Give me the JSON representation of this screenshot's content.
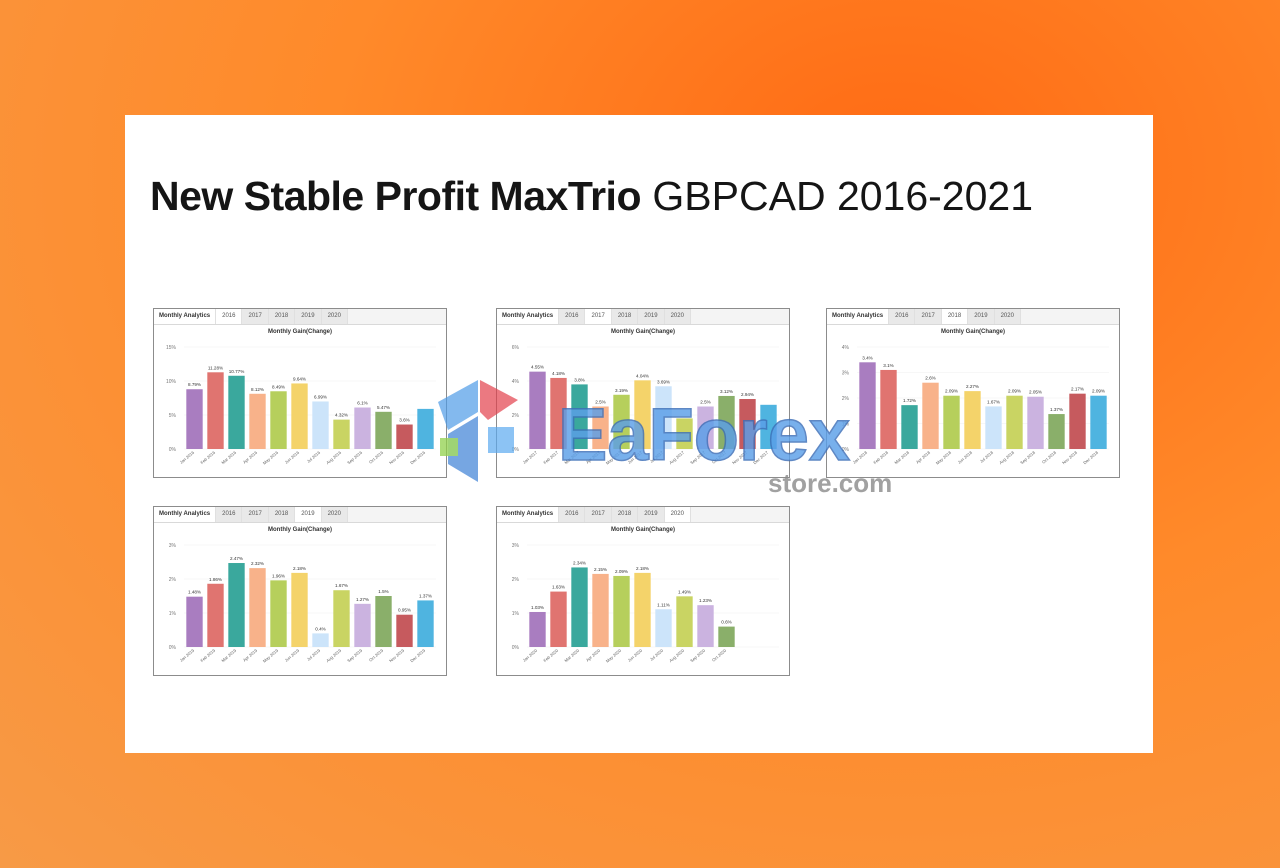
{
  "header": {
    "title_bold": "New Stable Profit MaxTrio",
    "title_rest": "GBPCAD 2016-2021"
  },
  "watermark": {
    "brand": "EaForex",
    "sub": "store.com"
  },
  "panels": [
    {
      "tabs": [
        "Monthly Analytics",
        "2016",
        "2017",
        "2018",
        "2019",
        "2020"
      ],
      "active_tab": 1,
      "chart_title": "Monthly Gain(Change)",
      "chart_data": {
        "type": "bar",
        "categories": [
          "Jan 2016",
          "Feb 2016",
          "Mar 2016",
          "Apr 2016",
          "May 2016",
          "Jun 2016",
          "Jul 2016",
          "Aug 2016",
          "Sep 2016",
          "Oct 2016",
          "Nov 2016",
          "Dec 2016"
        ],
        "values": [
          8.79,
          11.28,
          10.77,
          8.12,
          8.49,
          9.64,
          6.99,
          4.32,
          6.1,
          5.47,
          3.6,
          5.9
        ],
        "labels": [
          "8.79%",
          "11.28%",
          "10.77%",
          "8.12%",
          "8.49%",
          "9.64%",
          "6.99%",
          "4.32%",
          "6.1%",
          "5.47%",
          "3.6%",
          ""
        ],
        "y_ticks": [
          "0%",
          "5%",
          "10%",
          "15%"
        ],
        "ylim": [
          0,
          15
        ]
      }
    },
    {
      "tabs": [
        "Monthly Analytics",
        "2016",
        "2017",
        "2018",
        "2019",
        "2020"
      ],
      "active_tab": 2,
      "chart_title": "Monthly Gain(Change)",
      "chart_data": {
        "type": "bar",
        "categories": [
          "Jan 2017",
          "Feb 2017",
          "Mar 2017",
          "Apr 2017",
          "May 2017",
          "Jun 2017",
          "Jul 2017",
          "Aug 2017",
          "Sep 2017",
          "Oct 2017",
          "Nov 2017",
          "Dec 2017"
        ],
        "values": [
          4.55,
          4.18,
          3.8,
          2.5,
          3.19,
          4.04,
          3.69,
          1.8,
          2.5,
          3.12,
          2.94,
          2.6
        ],
        "labels": [
          "4.55%",
          "4.18%",
          "3.8%",
          "2.5%",
          "3.19%",
          "4.04%",
          "3.69%",
          "",
          "2.5%",
          "3.12%",
          "2.94%",
          ""
        ],
        "y_ticks": [
          "0%",
          "2%",
          "4%",
          "6%"
        ],
        "ylim": [
          0,
          6
        ]
      }
    },
    {
      "tabs": [
        "Monthly Analytics",
        "2016",
        "2017",
        "2018",
        "2019",
        "2020"
      ],
      "active_tab": 3,
      "chart_title": "Monthly Gain(Change)",
      "chart_data": {
        "type": "bar",
        "categories": [
          "Jan 2018",
          "Feb 2018",
          "Mar 2018",
          "Apr 2018",
          "May 2018",
          "Jun 2018",
          "Jul 2018",
          "Aug 2018",
          "Sep 2018",
          "Oct 2018",
          "Nov 2018",
          "Dec 2018"
        ],
        "values": [
          3.4,
          3.1,
          1.72,
          2.6,
          2.09,
          2.27,
          1.67,
          2.09,
          2.05,
          1.37,
          2.17,
          2.09
        ],
        "labels": [
          "3.4%",
          "3.1%",
          "1.72%",
          "2.6%",
          "2.09%",
          "2.27%",
          "1.67%",
          "2.09%",
          "2.05%",
          "1.37%",
          "2.17%",
          "2.09%"
        ],
        "y_ticks": [
          "0%",
          "1%",
          "2%",
          "3%",
          "4%"
        ],
        "ylim": [
          0,
          4
        ]
      }
    },
    {
      "tabs": [
        "Monthly Analytics",
        "2016",
        "2017",
        "2018",
        "2019",
        "2020"
      ],
      "active_tab": 4,
      "chart_title": "Monthly Gain(Change)",
      "chart_data": {
        "type": "bar",
        "categories": [
          "Jan 2019",
          "Feb 2019",
          "Mar 2019",
          "Apr 2019",
          "May 2019",
          "Jun 2019",
          "Jul 2019",
          "Aug 2019",
          "Sep 2019",
          "Oct 2019",
          "Nov 2019",
          "Dec 2019"
        ],
        "values": [
          1.48,
          1.86,
          2.47,
          2.32,
          1.96,
          2.18,
          0.4,
          1.67,
          1.27,
          1.5,
          0.95,
          1.37
        ],
        "labels": [
          "1.48%",
          "1.86%",
          "2.47%",
          "2.32%",
          "1.96%",
          "2.18%",
          "0.4%",
          "1.67%",
          "1.27%",
          "1.5%",
          "0.95%",
          "1.37%"
        ],
        "y_ticks": [
          "0%",
          "1%",
          "2%",
          "3%"
        ],
        "ylim": [
          0,
          3
        ]
      }
    },
    {
      "tabs": [
        "Monthly Analytics",
        "2016",
        "2017",
        "2018",
        "2019",
        "2020"
      ],
      "active_tab": 5,
      "chart_title": "Monthly Gain(Change)",
      "chart_data": {
        "type": "bar",
        "categories": [
          "Jan 2020",
          "Feb 2020",
          "Mar 2020",
          "Apr 2020",
          "May 2020",
          "Jun 2020",
          "Jul 2020",
          "Aug 2020",
          "Sep 2020",
          "Oct 2020"
        ],
        "values": [
          1.03,
          1.63,
          2.34,
          2.15,
          2.09,
          2.18,
          1.11,
          1.49,
          1.23,
          0.6
        ],
        "labels": [
          "1.03%",
          "1.63%",
          "2.34%",
          "2.15%",
          "2.09%",
          "2.18%",
          "1.11%",
          "1.49%",
          "1.23%",
          "0.6%"
        ],
        "y_ticks": [
          "0%",
          "1%",
          "2%",
          "3%"
        ],
        "ylim": [
          0,
          3
        ]
      }
    }
  ],
  "colors": {
    "bars": [
      "#a97dc0",
      "#e07470",
      "#3aa89d",
      "#f8b28a",
      "#b6cf5c",
      "#f4d36a",
      "#cce4fa",
      "#c9d463",
      "#cbb3e0",
      "#8aaf6a",
      "#c65a5e",
      "#4fb4e0"
    ]
  }
}
